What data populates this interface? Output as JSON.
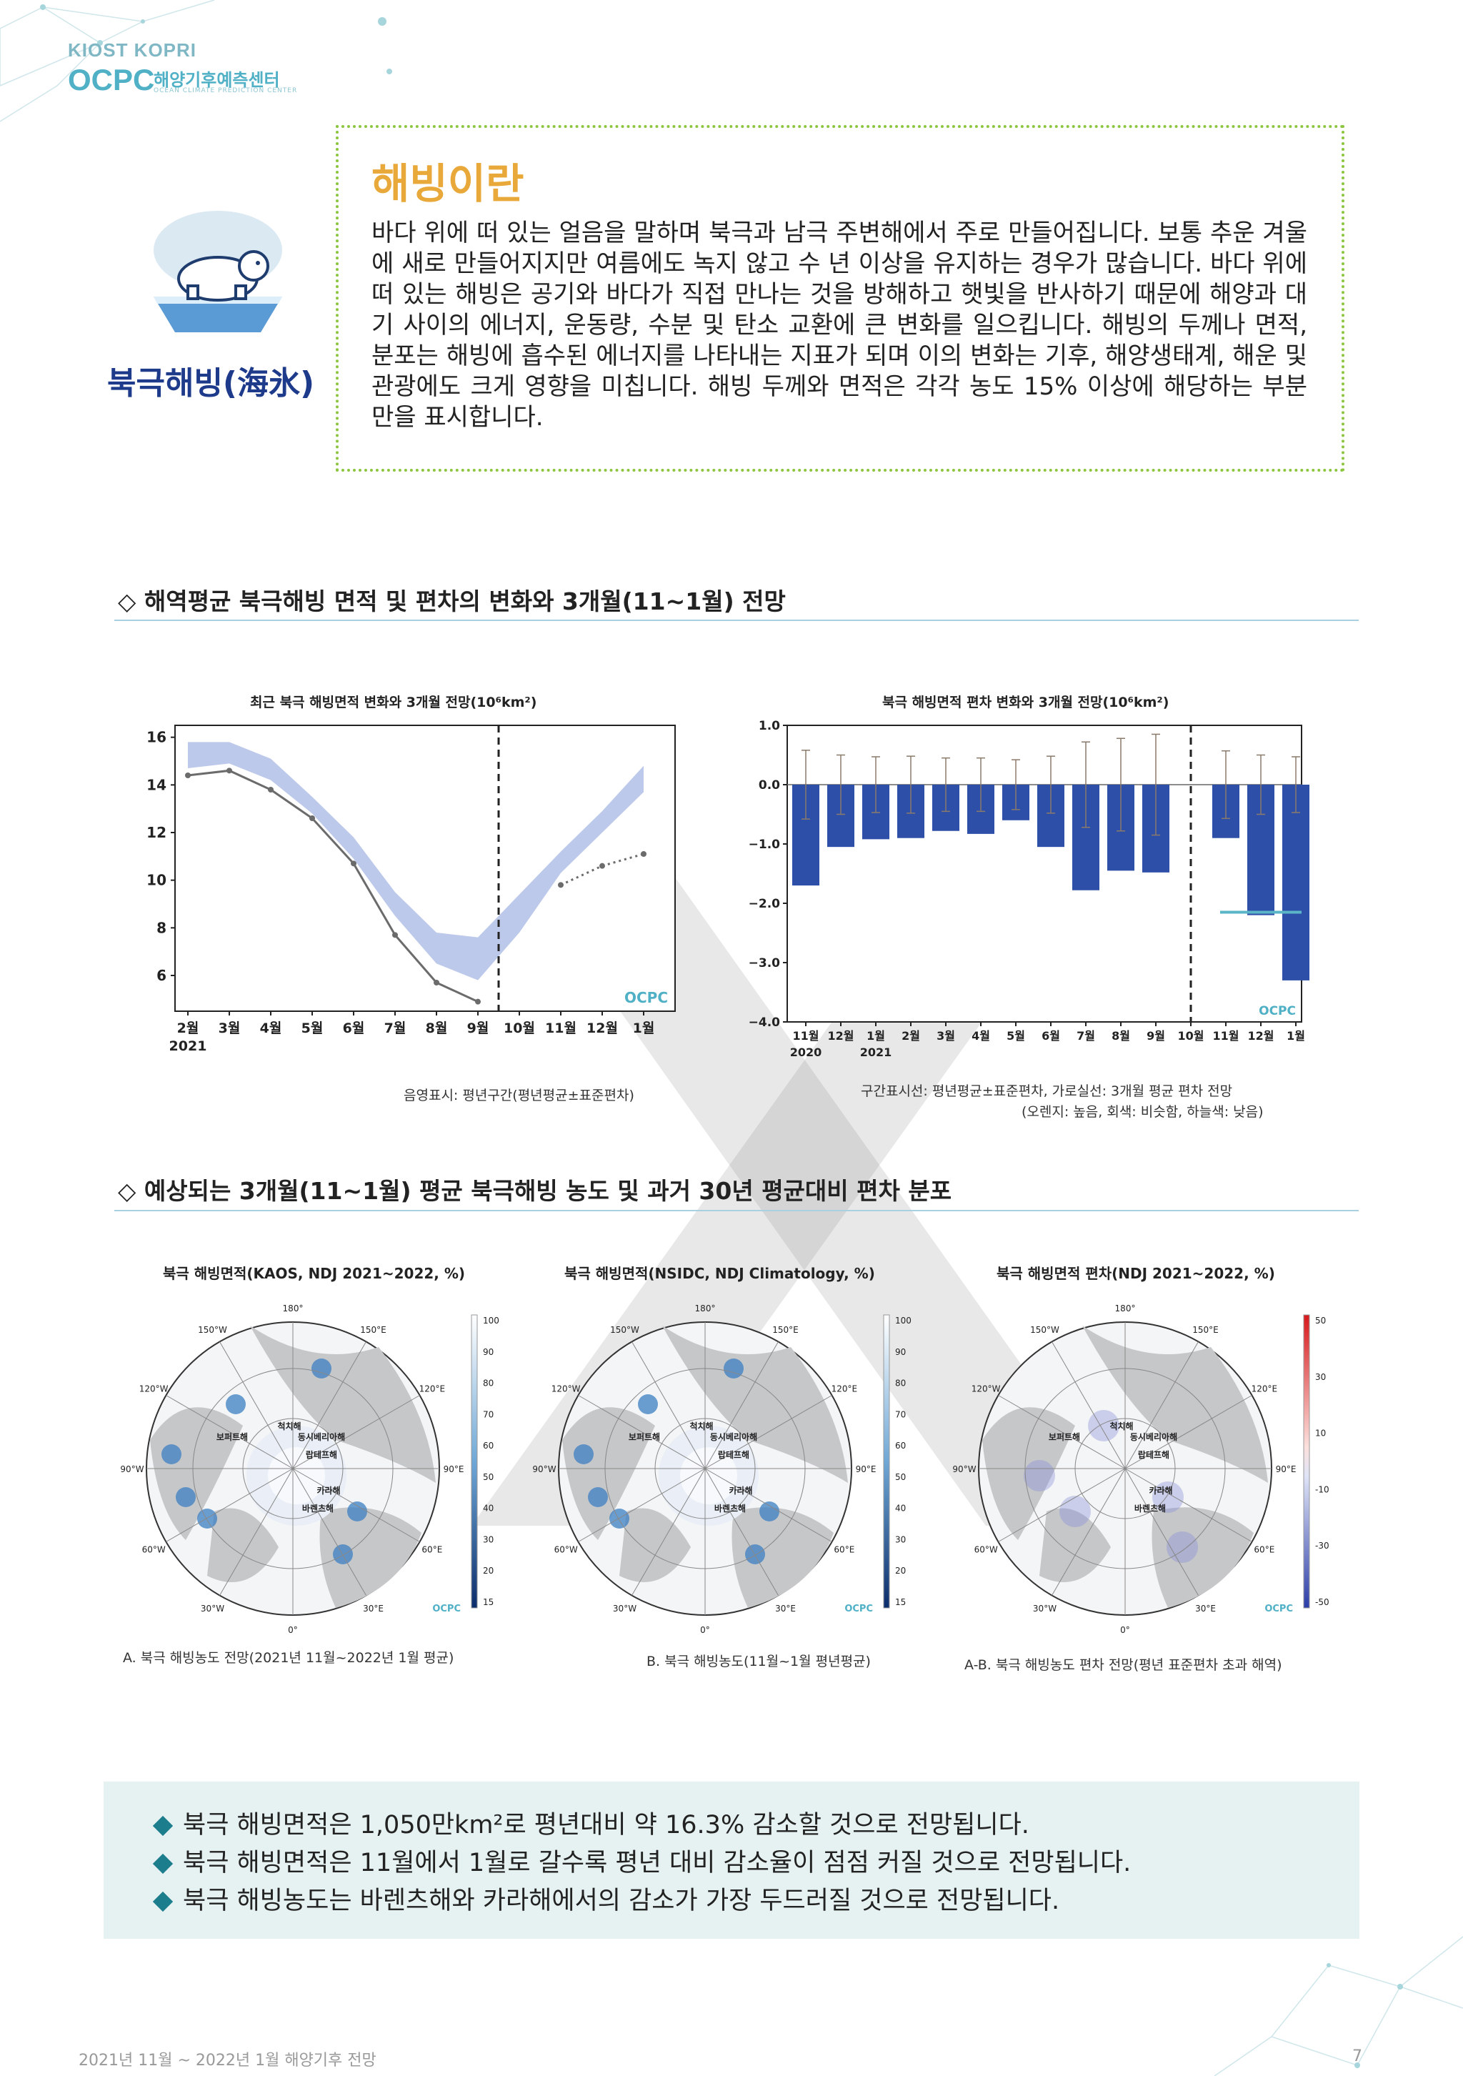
{
  "header": {
    "logo_top": "KIOST KOPRI",
    "logo_main": "OCPC",
    "logo_ko": "해양기후예측센터",
    "logo_en": "OCEAN CLIMATE PREDICTION CENTER"
  },
  "intro": {
    "title": "해빙이란",
    "side_title": "북극해빙(海氷)",
    "body": "바다 위에 떠 있는 얼음을 말하며 북극과 남극 주변해에서 주로 만들어집니다. 보통 추운 겨울에 새로 만들어지지만 여름에도 녹지 않고 수 년 이상을 유지하는 경우가 많습니다. 바다 위에 떠 있는 해빙은 공기와 바다가 직접 만나는 것을 방해하고 햇빛을 반사하기 때문에 해양과 대기 사이의 에너지, 운동량, 수분 및 탄소 교환에 큰 변화를 일으킵니다. 해빙의 두께나 면적, 분포는 해빙에 흡수된 에너지를 나타내는 지표가 되며 이의 변화는 기후, 해양생태계, 해운 및 관광에도 크게 영향을 미칩니다. 해빙 두께와 면적은 각각 농도 15% 이상에 해당하는 부분만을 표시합니다."
  },
  "section1": {
    "heading": "◇ 해역평균 북극해빙 면적 및 편차의 변화와 3개월(11~1월) 전망"
  },
  "section2": {
    "heading": "◇ 예상되는 3개월(11~1월) 평균 북극해빙 농도 및 과거 30년 평균대비 편차 분포"
  },
  "chart_data": [
    {
      "type": "line",
      "title": "최근 북극 해빙면적 변화와 3개월 전망(10⁶km²)",
      "categories": [
        "2월",
        "3월",
        "4월",
        "5월",
        "6월",
        "7월",
        "8월",
        "9월",
        "10월",
        "11월",
        "12월",
        "1월"
      ],
      "year_labels": [
        "2021"
      ],
      "ylim": [
        4.5,
        16.5
      ],
      "yticks": [
        6,
        8,
        10,
        12,
        14,
        16
      ],
      "series": [
        {
          "name": "관측",
          "style": "solid-gray",
          "values": [
            14.4,
            14.6,
            13.8,
            12.6,
            10.7,
            7.7,
            5.7,
            4.9,
            null,
            null,
            null,
            null
          ]
        },
        {
          "name": "전망",
          "style": "dotted-gray",
          "values": [
            null,
            null,
            null,
            null,
            null,
            null,
            null,
            null,
            null,
            9.8,
            10.6,
            11.1
          ]
        }
      ],
      "band": {
        "name": "평년평균±표준편차",
        "lower": [
          14.7,
          14.9,
          14.2,
          12.8,
          10.9,
          8.5,
          6.5,
          5.8,
          7.8,
          10.3,
          12.0,
          13.7
        ],
        "upper": [
          15.8,
          15.8,
          15.1,
          13.5,
          11.8,
          9.5,
          7.8,
          7.6,
          9.4,
          11.2,
          12.9,
          14.8
        ]
      },
      "divider_after": "9월",
      "caption": "음영표시: 평년구간(평년평균±표준편차)",
      "logo": "OCPC"
    },
    {
      "type": "bar",
      "title": "북극 해빙면적 편차 변화와 3개월 전망(10⁶km²)",
      "categories": [
        "11월",
        "12월",
        "1월",
        "2월",
        "3월",
        "4월",
        "5월",
        "6월",
        "7월",
        "8월",
        "9월",
        "10월",
        "11월",
        "12월",
        "1월"
      ],
      "year_labels": [
        "2020",
        "2021"
      ],
      "ylim": [
        -4.0,
        1.0
      ],
      "yticks": [
        1.0,
        0.0,
        -1.0,
        -2.0,
        -3.0,
        -4.0
      ],
      "values": [
        -1.7,
        -1.05,
        -0.92,
        -0.9,
        -0.78,
        -0.83,
        -0.6,
        -1.05,
        -1.78,
        -1.45,
        -1.48,
        0.0,
        -0.9,
        -2.2,
        -3.3
      ],
      "error_bars": [
        0.58,
        0.5,
        0.47,
        0.48,
        0.45,
        0.45,
        0.42,
        0.48,
        0.72,
        0.78,
        0.85,
        0.0,
        0.57,
        0.5,
        0.47
      ],
      "forecast_line": -2.15,
      "divider_after": "10월",
      "caption_line1": "구간표시선: 평년평균±표준편차, 가로실선: 3개월 평균 편차 전망",
      "caption_line2": "(오렌지: 높음, 회색: 비슷함, 하늘색: 낮음)",
      "logo": "OCPC"
    }
  ],
  "maps": [
    {
      "title": "북극 해빙면적(KAOS, NDJ 2021~2022, %)",
      "caption": "A. 북극 해빙농도 전망(2021년 11월~2022년 1월 평균)",
      "scale": [
        "100",
        "90",
        "80",
        "70",
        "60",
        "50",
        "40",
        "30",
        "20",
        "15"
      ]
    },
    {
      "title": "북극 해빙면적(NSIDC, NDJ Climatology, %)",
      "caption": "B. 북극 해빙농도(11월~1월 평년평균)",
      "scale": [
        "100",
        "90",
        "80",
        "70",
        "60",
        "50",
        "40",
        "30",
        "20",
        "15"
      ]
    },
    {
      "title": "북극 해빙면적 편차(NDJ 2021~2022, %)",
      "caption": "A-B. 북극 해빙농도 편차 전망(평년 표준편차 초과 해역)",
      "scale": [
        "50",
        "30",
        "10",
        "-10",
        "-30",
        "-50"
      ]
    }
  ],
  "map_labels": {
    "lon": [
      "180°",
      "150°E",
      "120°E",
      "90°E",
      "60°E",
      "30°E",
      "0°",
      "30°W",
      "60°W",
      "90°W",
      "120°W",
      "150°W"
    ],
    "seas": [
      "척치해",
      "동시베리아해",
      "보퍼트해",
      "랍테프해",
      "카라해",
      "바렌츠해"
    ]
  },
  "summary": [
    "북극 해빙면적은 1,050만km²로 평년대비 약 16.3% 감소할 것으로 전망됩니다.",
    "북극 해빙면적은 11월에서 1월로 갈수록 평년 대비 감소율이 점점 커질 것으로 전망됩니다.",
    "북극 해빙농도는 바렌츠해와 카라해에서의 감소가 가장 두드러질 것으로 전망됩니다."
  ],
  "footer": {
    "left": "2021년 11월 ~ 2022년 1월 해양기후 전망",
    "page": "7"
  },
  "colors": {
    "band": "#b9c6ea",
    "bar": "#2e4fa8",
    "accent": "#8cc63f",
    "title": "#e9a93a"
  }
}
